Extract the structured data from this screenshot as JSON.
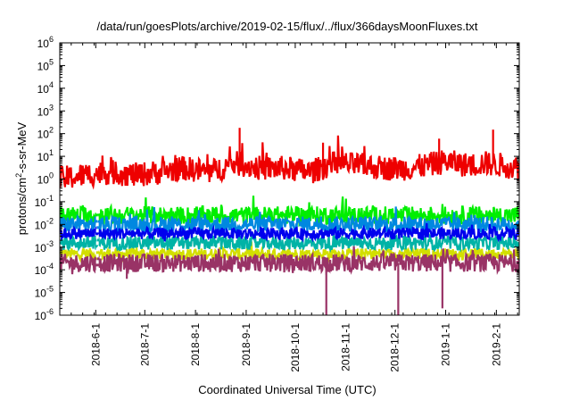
{
  "chart_data": {
    "type": "line",
    "title": "/data/run/goesPlots/archive/2019-02-15/flux/../flux/366daysMoonFluxes.txt",
    "xlabel": "Coordinated Universal Time (UTC)",
    "ylabel": {
      "prefix": "protons/cm",
      "sup": "2",
      "suffix": "-s-sr-MeV"
    },
    "yscale": "log",
    "ylim": [
      1e-06,
      1000000.0
    ],
    "xlim": [
      "2018-05-10",
      "2019-02-15"
    ],
    "grid": false,
    "x_ticks": [
      "2018-6-1",
      "2018-7-1",
      "2018-8-1",
      "2018-9-1",
      "2018-10-1",
      "2018-11-1",
      "2018-12-1",
      "2019-1-1",
      "2019-2-1"
    ],
    "y_ticks": [
      {
        "base": "10",
        "exp": "-6",
        "value": 1e-06
      },
      {
        "base": "10",
        "exp": "-5",
        "value": 1e-05
      },
      {
        "base": "10",
        "exp": "-4",
        "value": 0.0001
      },
      {
        "base": "10",
        "exp": "-3",
        "value": 0.001
      },
      {
        "base": "10",
        "exp": "-2",
        "value": 0.01
      },
      {
        "base": "10",
        "exp": "-1",
        "value": 0.1
      },
      {
        "base": "10",
        "exp": "0",
        "value": 1
      },
      {
        "base": "10",
        "exp": "1",
        "value": 10
      },
      {
        "base": "10",
        "exp": "2",
        "value": 100
      },
      {
        "base": "10",
        "exp": "3",
        "value": 1000
      },
      {
        "base": "10",
        "exp": "4",
        "value": 10000
      },
      {
        "base": "10",
        "exp": "5",
        "value": 100000
      },
      {
        "base": "10",
        "exp": "6",
        "value": 1000000
      }
    ],
    "series": [
      {
        "color": "#d3df00",
        "x": [
          "2018-05-10",
          "2018-06-01",
          "2018-07-01",
          "2018-08-01",
          "2018-09-01",
          "2018-10-01",
          "2018-11-01",
          "2018-12-01",
          "2019-01-01",
          "2019-02-01",
          "2019-02-15"
        ],
        "y": [
          0.0005,
          0.0005,
          0.0005,
          0.0005,
          0.0005,
          0.0005,
          0.0005,
          0.0005,
          0.0005,
          0.0005,
          0.0005
        ],
        "spread_decades": 0.25
      },
      {
        "color": "#993366",
        "x": [
          "2018-05-10",
          "2018-06-01",
          "2018-06-20",
          "2018-07-01",
          "2018-08-01",
          "2018-08-10",
          "2018-09-01",
          "2018-10-01",
          "2018-10-20",
          "2018-11-01",
          "2018-12-01",
          "2018-12-03",
          "2019-01-01",
          "2019-02-01",
          "2019-02-15"
        ],
        "y": [
          0.0002,
          0.0002,
          0.0002,
          0.0002,
          0.0002,
          0.0002,
          0.0002,
          0.0002,
          0.0002,
          0.0002,
          0.0002,
          0.0002,
          0.0002,
          0.0002,
          0.0002
        ],
        "spread_decades": 0.4,
        "dips": [
          {
            "x": "2018-06-20",
            "y": 4e-05
          },
          {
            "x": "2018-08-10",
            "y": 8e-05
          },
          {
            "x": "2018-10-20",
            "y": 1e-06
          },
          {
            "x": "2018-12-03",
            "y": 1e-06
          },
          {
            "x": "2018-12-30",
            "y": 2e-06
          }
        ]
      },
      {
        "color": "#00b3a6",
        "x": [
          "2018-05-10",
          "2018-06-01",
          "2018-07-01",
          "2018-08-01",
          "2018-09-01",
          "2018-10-01",
          "2018-11-01",
          "2018-12-01",
          "2019-01-01",
          "2019-02-01",
          "2019-02-15"
        ],
        "y": [
          0.0015,
          0.0015,
          0.0015,
          0.0015,
          0.0015,
          0.0015,
          0.0015,
          0.0015,
          0.0015,
          0.0015,
          0.0015
        ],
        "spread_decades": 0.3
      },
      {
        "color": "#00ee00",
        "x": [
          "2018-05-10",
          "2018-06-01",
          "2018-07-01",
          "2018-08-01",
          "2018-09-01",
          "2018-10-01",
          "2018-11-01",
          "2018-12-01",
          "2019-01-01",
          "2019-02-01",
          "2019-02-15"
        ],
        "y": [
          0.025,
          0.025,
          0.025,
          0.025,
          0.025,
          0.025,
          0.025,
          0.025,
          0.025,
          0.025,
          0.025
        ],
        "spread_decades": 0.4
      },
      {
        "color": "#0088e0",
        "x": [
          "2018-05-10",
          "2018-06-01",
          "2018-07-01",
          "2018-08-01",
          "2018-09-01",
          "2018-10-01",
          "2018-11-01",
          "2018-12-01",
          "2019-01-01",
          "2019-02-01",
          "2019-02-15"
        ],
        "y": [
          0.01,
          0.01,
          0.01,
          0.01,
          0.01,
          0.01,
          0.01,
          0.01,
          0.01,
          0.01,
          0.01
        ],
        "spread_decades": 0.35
      },
      {
        "color": "#0000ee",
        "x": [
          "2018-05-10",
          "2018-06-01",
          "2018-07-01",
          "2018-08-01",
          "2018-09-01",
          "2018-10-01",
          "2018-11-01",
          "2018-12-01",
          "2019-01-01",
          "2019-02-01",
          "2019-02-15"
        ],
        "y": [
          0.004,
          0.004,
          0.004,
          0.004,
          0.004,
          0.004,
          0.004,
          0.004,
          0.004,
          0.004,
          0.004
        ],
        "spread_decades": 0.25
      },
      {
        "color": "#ee0000",
        "x": [
          "2018-05-10",
          "2018-05-25",
          "2018-06-10",
          "2018-06-25",
          "2018-07-10",
          "2018-07-25",
          "2018-08-10",
          "2018-08-25",
          "2018-09-10",
          "2018-09-25",
          "2018-10-10",
          "2018-10-25",
          "2018-11-10",
          "2018-11-25",
          "2018-12-10",
          "2018-12-20",
          "2019-01-01",
          "2019-01-15",
          "2019-01-25",
          "2019-02-05",
          "2019-02-15"
        ],
        "y": [
          1,
          1.5,
          2,
          1.5,
          2,
          3,
          2,
          5,
          3,
          3,
          2,
          5,
          4,
          3,
          3,
          4,
          6,
          4,
          5,
          4,
          3
        ],
        "spread_decades": 0.55,
        "spikes": [
          {
            "x": "2018-08-28",
            "y": 180
          },
          {
            "x": "2018-10-18",
            "y": 40
          },
          {
            "x": "2018-12-28",
            "y": 60
          },
          {
            "x": "2019-01-30",
            "y": 150
          }
        ]
      }
    ]
  }
}
